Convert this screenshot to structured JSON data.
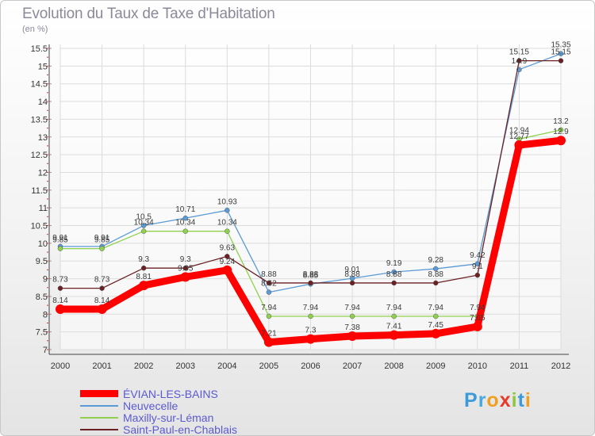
{
  "title": "Evolution du Taux de Taxe d'Habitation",
  "unit_label": "(en %)",
  "logo": {
    "letters": [
      "P",
      "r",
      "o",
      "x",
      "i",
      "t",
      "i"
    ],
    "colors": [
      "#3b9ad9",
      "#4aa8e0",
      "#f0a020",
      "#e83a2a",
      "#8cc63f",
      "#3b9ad9",
      "#f0a020"
    ]
  },
  "chart_data": {
    "type": "line",
    "title": "Evolution du Taux de Taxe d'Habitation",
    "ylabel": "(en %)",
    "xlabel": "",
    "x": [
      2000,
      2001,
      2002,
      2003,
      2004,
      2005,
      2006,
      2007,
      2008,
      2009,
      2010,
      2011,
      2012
    ],
    "ylim": [
      7,
      15.5
    ],
    "yticks": [
      7,
      7.5,
      8,
      8.5,
      9,
      9.5,
      10,
      10.5,
      11,
      11.5,
      12,
      12.5,
      13,
      13.5,
      14,
      14.5,
      15,
      15.5
    ],
    "grid": true,
    "legend": "bottom-left",
    "series": [
      {
        "name": "ÉVIAN-LES-BAINS",
        "color": "#ff0000",
        "values": [
          8.14,
          8.14,
          8.81,
          9.05,
          9.24,
          7.21,
          7.3,
          7.38,
          7.41,
          7.45,
          7.65,
          12.77,
          12.9
        ],
        "labels": [
          "8.14",
          "8.14",
          "8.81",
          "9.05",
          "9.24",
          "7.21",
          "7.3",
          "7.38",
          "7.41",
          "7.45",
          "7.65",
          "12.77",
          "12.9"
        ]
      },
      {
        "name": "Neuvecelle",
        "color": "#5b9bd5",
        "values": [
          9.91,
          9.91,
          10.5,
          10.71,
          10.93,
          8.62,
          8.85,
          9.01,
          9.19,
          9.28,
          9.42,
          14.9,
          15.35
        ],
        "labels": [
          "9.91",
          "9.91",
          "10.5",
          "10.71",
          "10.93",
          "8.62",
          "8.85",
          "9.01",
          "9.19",
          "9.28",
          "9.42",
          "14.9",
          "15.35"
        ]
      },
      {
        "name": "Maxilly-sur-Léman",
        "color": "#8fd14f",
        "values": [
          9.85,
          9.85,
          10.34,
          10.34,
          10.34,
          7.94,
          7.94,
          7.94,
          7.94,
          7.94,
          7.94,
          12.94,
          13.2
        ],
        "labels": [
          "9.85",
          "9.85",
          "10.34",
          "10.34",
          "10.34",
          "7.94",
          "7.94",
          "7.94",
          "7.94",
          "7.94",
          "7.94",
          "12.94",
          "13.2"
        ]
      },
      {
        "name": "Saint-Paul-en-Chablais",
        "color": "#6b2024",
        "values": [
          8.73,
          8.73,
          9.3,
          9.3,
          9.63,
          8.88,
          8.88,
          8.88,
          8.88,
          8.88,
          9.1,
          15.15,
          15.15
        ],
        "labels": [
          "8.73",
          "8.73",
          "9.3",
          "9.3",
          "9.63",
          "8.88",
          "8.88",
          "8.88",
          "8.88",
          "8.88",
          "9.1",
          "15.15",
          "15.15"
        ]
      }
    ]
  }
}
